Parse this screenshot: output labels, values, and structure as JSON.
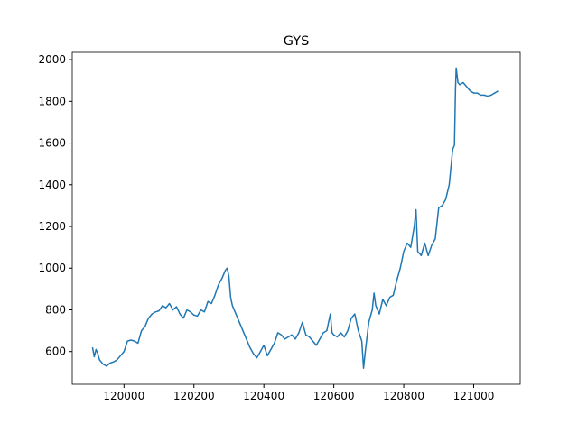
{
  "chart_data": {
    "type": "line",
    "title": "GYS",
    "x": [
      119910,
      119915,
      119920,
      119925,
      119930,
      119940,
      119950,
      119960,
      119970,
      119980,
      119990,
      120000,
      120010,
      120020,
      120030,
      120040,
      120050,
      120060,
      120070,
      120080,
      120090,
      120100,
      120110,
      120120,
      120130,
      120140,
      120150,
      120160,
      120170,
      120180,
      120190,
      120200,
      120210,
      120220,
      120230,
      120240,
      120250,
      120260,
      120270,
      120280,
      120290,
      120295,
      120300,
      120305,
      120310,
      120320,
      120330,
      120340,
      120350,
      120360,
      120370,
      120380,
      120390,
      120400,
      120410,
      120420,
      120430,
      120440,
      120450,
      120460,
      120470,
      120480,
      120490,
      120500,
      120510,
      120520,
      120530,
      120540,
      120550,
      120560,
      120570,
      120580,
      120590,
      120595,
      120600,
      120610,
      120620,
      120630,
      120640,
      120650,
      120660,
      120670,
      120680,
      120685,
      120690,
      120700,
      120710,
      120715,
      120720,
      120730,
      120740,
      120750,
      120760,
      120770,
      120780,
      120790,
      120800,
      120810,
      120820,
      120830,
      120835,
      120840,
      120850,
      120860,
      120870,
      120880,
      120890,
      120900,
      120910,
      120920,
      120930,
      120940,
      120945,
      120948,
      120950,
      120955,
      120960,
      120970,
      120980,
      120990,
      121000,
      121010,
      121020,
      121030,
      121040,
      121050,
      121060,
      121070
    ],
    "series": [
      {
        "color": "#1f77b4",
        "values": [
          620,
          575,
          610,
          590,
          560,
          540,
          530,
          545,
          550,
          560,
          580,
          600,
          650,
          655,
          650,
          640,
          700,
          720,
          760,
          780,
          790,
          795,
          820,
          810,
          830,
          800,
          815,
          780,
          760,
          800,
          790,
          775,
          770,
          800,
          790,
          840,
          830,
          870,
          920,
          950,
          990,
          1000,
          960,
          860,
          820,
          780,
          740,
          700,
          660,
          620,
          590,
          570,
          600,
          630,
          580,
          610,
          640,
          690,
          680,
          660,
          670,
          680,
          660,
          690,
          740,
          680,
          670,
          650,
          630,
          660,
          690,
          700,
          780,
          690,
          680,
          670,
          690,
          670,
          700,
          760,
          780,
          700,
          650,
          520,
          600,
          740,
          800,
          880,
          820,
          780,
          850,
          820,
          860,
          870,
          940,
          1000,
          1080,
          1120,
          1100,
          1200,
          1280,
          1080,
          1060,
          1120,
          1060,
          1110,
          1140,
          1290,
          1300,
          1330,
          1400,
          1570,
          1590,
          1860,
          1960,
          1890,
          1880,
          1890,
          1870,
          1850,
          1840,
          1840,
          1830,
          1830,
          1825,
          1830,
          1840,
          1850
        ]
      }
    ],
    "xlim": [
      119852,
      121133
    ],
    "ylim": [
      443,
      2035
    ],
    "xticks": [
      120000,
      120200,
      120400,
      120600,
      120800,
      121000
    ],
    "yticks": [
      600,
      800,
      1000,
      1200,
      1400,
      1600,
      1800,
      2000
    ]
  }
}
